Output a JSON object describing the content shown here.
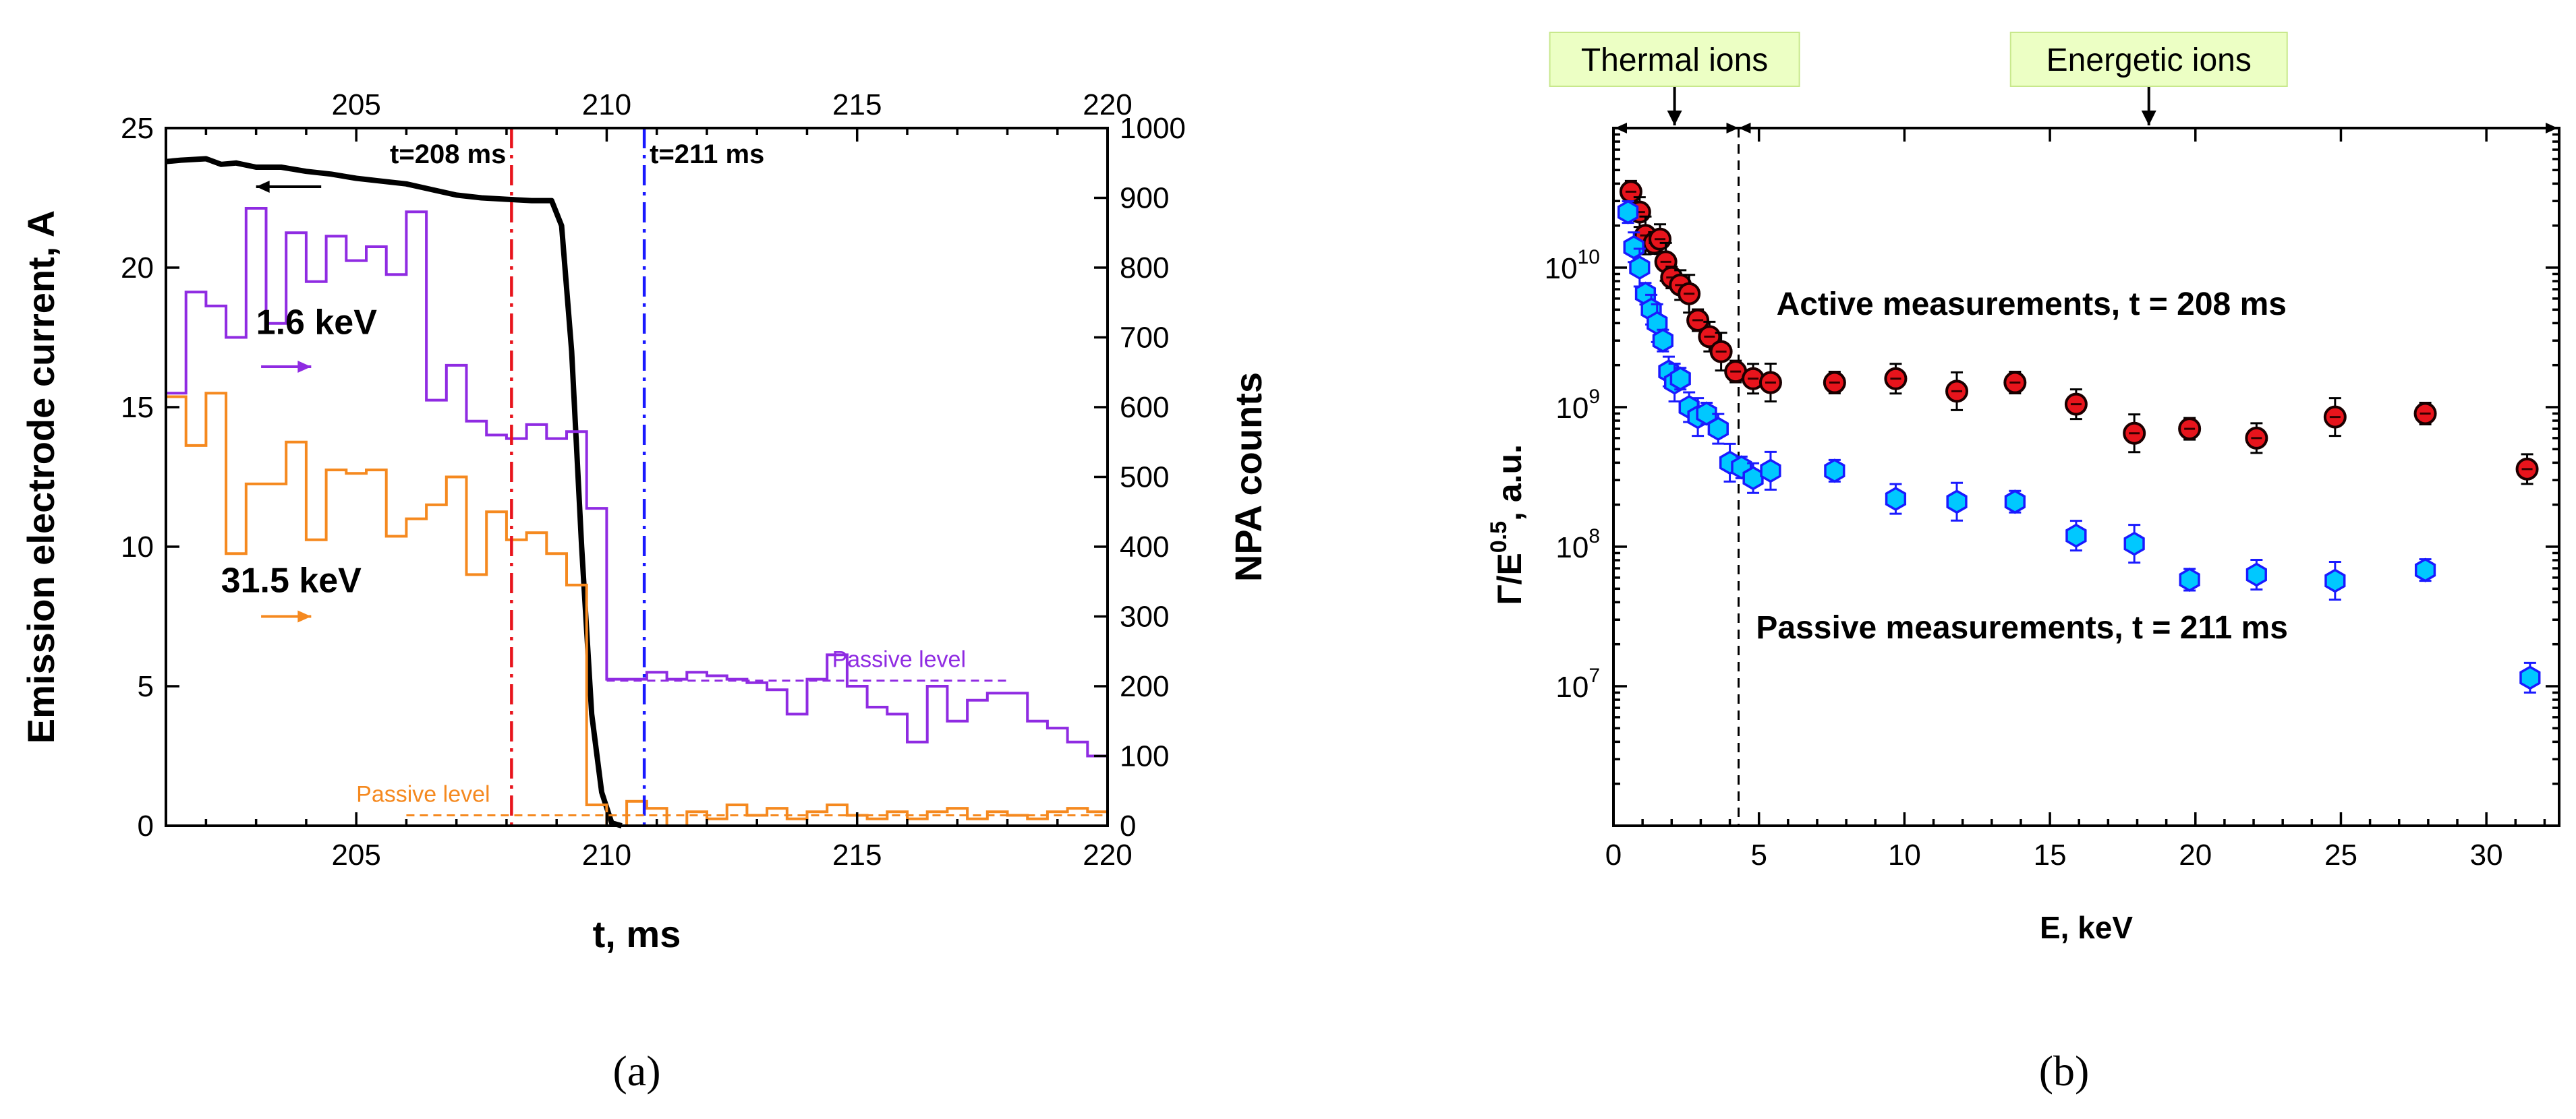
{
  "chart_data": [
    {
      "id": "a",
      "type": "line",
      "panel_label": "(a)",
      "xlabel": "t, ms",
      "ylabel": "Emission electrode current, A",
      "y2label": "NPA counts",
      "xlim": [
        201.2,
        220
      ],
      "ylim": [
        0,
        25
      ],
      "y2lim": [
        0,
        1000
      ],
      "x_ticks": [
        205,
        210,
        215,
        220
      ],
      "y_ticks": [
        0,
        5,
        10,
        15,
        20,
        25
      ],
      "y2_ticks": [
        0,
        100,
        200,
        300,
        400,
        500,
        600,
        700,
        800,
        900,
        1000
      ],
      "top_axis_ticks": [
        205,
        210,
        215,
        220
      ],
      "vlines": [
        {
          "x": 208.1,
          "label": "t=208 ms",
          "color": "#e8141c"
        },
        {
          "x": 210.75,
          "label": "t=211 ms",
          "color": "#1a1aff"
        }
      ],
      "series": [
        {
          "name": "Emission electrode current",
          "axis": "left",
          "color": "#000000",
          "x": [
            201.2,
            201.5,
            202.0,
            202.3,
            202.6,
            203.0,
            203.5,
            204.0,
            204.5,
            205.0,
            205.5,
            206.0,
            206.5,
            207.0,
            207.5,
            208.0,
            208.5,
            208.9,
            209.1,
            209.3,
            209.5,
            209.7,
            209.9,
            210.1,
            210.3
          ],
          "values": [
            23.8,
            23.85,
            23.9,
            23.7,
            23.75,
            23.6,
            23.6,
            23.45,
            23.35,
            23.2,
            23.1,
            23.0,
            22.8,
            22.6,
            22.5,
            22.45,
            22.4,
            22.4,
            21.5,
            17.0,
            10.0,
            4.0,
            1.2,
            0.1,
            0.0
          ]
        },
        {
          "name": "1.6 keV",
          "axis": "right",
          "color": "#8f2be2",
          "step": true,
          "edges": [
            201.2,
            201.6,
            202.0,
            202.4,
            202.8,
            203.2,
            203.6,
            204.0,
            204.4,
            204.8,
            205.2,
            205.6,
            206.0,
            206.4,
            206.8,
            207.2,
            207.6,
            208.0,
            208.4,
            208.8,
            209.2,
            209.6,
            210.0,
            210.4,
            210.8,
            211.2,
            211.6,
            212.0,
            212.4,
            212.8,
            213.2,
            213.6,
            214.0,
            214.4,
            214.8,
            215.2,
            215.6,
            216.0,
            216.4,
            216.8,
            217.2,
            217.6,
            218.0,
            218.4,
            218.8,
            219.2,
            219.6,
            220.0
          ],
          "values": [
            620,
            765,
            745,
            700,
            885,
            720,
            850,
            780,
            845,
            810,
            830,
            790,
            880,
            610,
            660,
            580,
            560,
            555,
            575,
            555,
            565,
            455,
            210,
            210,
            220,
            210,
            220,
            215,
            210,
            205,
            195,
            160,
            210,
            245,
            200,
            170,
            160,
            120,
            200,
            150,
            180,
            190,
            190,
            150,
            140,
            120,
            100
          ]
        },
        {
          "name": "31.5 keV",
          "axis": "right",
          "color": "#f5891f",
          "step": true,
          "edges": [
            201.2,
            201.6,
            202.0,
            202.4,
            202.8,
            203.2,
            203.6,
            204.0,
            204.4,
            204.8,
            205.2,
            205.6,
            206.0,
            206.4,
            206.8,
            207.2,
            207.6,
            208.0,
            208.4,
            208.8,
            209.2,
            209.6,
            210.0,
            210.4,
            210.8,
            211.2,
            211.6,
            212.0,
            212.4,
            212.8,
            213.2,
            213.6,
            214.0,
            214.4,
            214.8,
            215.2,
            215.6,
            216.0,
            216.4,
            216.8,
            217.2,
            217.6,
            218.0,
            218.4,
            218.8,
            219.2,
            219.6,
            220.0
          ],
          "values": [
            615,
            545,
            620,
            390,
            490,
            490,
            550,
            410,
            510,
            505,
            510,
            415,
            440,
            460,
            500,
            360,
            450,
            410,
            420,
            390,
            345,
            30,
            0,
            35,
            25,
            0,
            20,
            10,
            30,
            15,
            25,
            10,
            20,
            30,
            15,
            10,
            20,
            10,
            20,
            25,
            10,
            20,
            15,
            10,
            20,
            25,
            20
          ]
        }
      ],
      "passive_levels": [
        {
          "label": "Passive level",
          "color": "#8f2be2",
          "value": 208,
          "x_range": [
            210.0,
            218.0
          ]
        },
        {
          "label": "Passive level",
          "color": "#f5891f",
          "value": 15,
          "x_range": [
            206.0,
            220.0
          ]
        }
      ],
      "annotations": [
        {
          "text": "1.6 keV",
          "color": "#8f2be2"
        },
        {
          "text": "31.5 keV",
          "color": "#f5891f"
        }
      ]
    },
    {
      "id": "b",
      "type": "scatter",
      "panel_label": "(b)",
      "xlabel": "E, keV",
      "ylabel": "Γ/E^0.5, a.u.",
      "ylabel_main": "Γ/E",
      "ylabel_sup": "0.5",
      "ylabel_suffix": ", a.u.",
      "yscale": "log",
      "xlim": [
        0,
        32.5
      ],
      "ylim": [
        1000000.0,
        100000000000.0
      ],
      "x_ticks": [
        0,
        5,
        10,
        15,
        20,
        25,
        30
      ],
      "y_ticks": [
        10000000,
        100000000,
        1000000000,
        10000000000
      ],
      "y_tick_labels": [
        {
          "base": "10",
          "exp": "7"
        },
        {
          "base": "10",
          "exp": "8"
        },
        {
          "base": "10",
          "exp": "9"
        },
        {
          "base": "10",
          "exp": "10"
        }
      ],
      "divider_x": 4.3,
      "region_boxes": [
        {
          "label": "Thermal ions",
          "range": [
            0,
            4.3
          ]
        },
        {
          "label": "Energetic ions",
          "range": [
            4.3,
            32.5
          ]
        }
      ],
      "series": [
        {
          "name": "Active measurements, t = 208 ms",
          "color": "#e8141c",
          "x": [
            0.6,
            0.9,
            1.1,
            1.4,
            1.6,
            1.8,
            2.0,
            2.3,
            2.6,
            2.9,
            3.3,
            3.7,
            4.2,
            4.8,
            5.4,
            7.6,
            9.7,
            11.8,
            13.8,
            15.9,
            17.9,
            19.8,
            22.1,
            24.8,
            27.9,
            31.4
          ],
          "values": [
            35000000000,
            25000000000,
            17000000000,
            15000000000,
            16000000000,
            11000000000,
            8500000000,
            7500000000,
            6500000000,
            4200000000,
            3200000000,
            2500000000,
            1800000000,
            1600000000,
            1500000000,
            1500000000,
            1600000000,
            1300000000,
            1500000000,
            1050000000,
            650000000,
            700000000,
            600000000,
            850000000,
            900000000,
            360000000
          ]
        },
        {
          "name": "Passive measurements, t = 211 ms",
          "color": "#00c8ff",
          "x": [
            0.5,
            0.7,
            0.9,
            1.1,
            1.3,
            1.5,
            1.7,
            1.9,
            2.1,
            2.3,
            2.6,
            2.9,
            3.2,
            3.6,
            4.0,
            4.4,
            4.8,
            5.4,
            7.6,
            9.7,
            11.8,
            13.8,
            15.9,
            17.9,
            19.8,
            22.1,
            24.8,
            27.9,
            31.5
          ],
          "values": [
            25000000000,
            14000000000,
            10000000000,
            6500000000,
            5000000000,
            4000000000,
            3000000000,
            1800000000,
            1500000000,
            1600000000,
            1000000000,
            850000000,
            900000000,
            700000000,
            400000000,
            370000000,
            310000000,
            350000000,
            350000000,
            220000000,
            210000000,
            210000000,
            120000000,
            105000000,
            58000000,
            63000000,
            57000000,
            68000000,
            11500000
          ]
        }
      ]
    }
  ]
}
